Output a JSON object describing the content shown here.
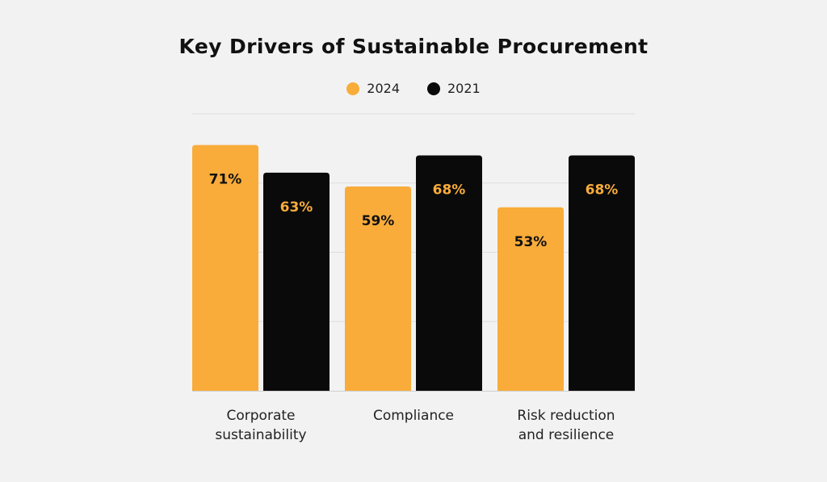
{
  "chart_data": {
    "type": "bar",
    "title": "Key Drivers of Sustainable Procurement",
    "categories": [
      "Corporate\nsustainability",
      "Compliance",
      "Risk reduction\nand resilience"
    ],
    "series": [
      {
        "name": "2024",
        "color": "#f9ac3a",
        "label_color": "#111111",
        "values": [
          71,
          59,
          53
        ],
        "labels": [
          "71%",
          "59%",
          "53%"
        ]
      },
      {
        "name": "2021",
        "color": "#0a0a0a",
        "label_color": "#f9ac3a",
        "values": [
          63,
          68,
          68
        ],
        "labels": [
          "63%",
          "68%",
          "68%"
        ]
      }
    ],
    "ylim": [
      0,
      80
    ],
    "grid": true,
    "legend_position": "top-center"
  }
}
